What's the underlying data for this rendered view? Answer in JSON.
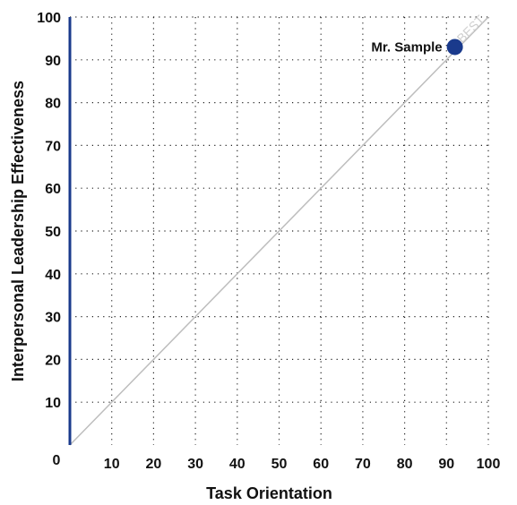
{
  "chart_data": {
    "type": "scatter",
    "xlabel": "Task Orientation",
    "ylabel": "Interpersonal Leadership Effectiveness",
    "xlim": [
      0,
      100
    ],
    "ylim": [
      0,
      100
    ],
    "origin_label": "0",
    "x_ticks": [
      10,
      20,
      30,
      40,
      50,
      60,
      70,
      80,
      90,
      100
    ],
    "y_ticks": [
      10,
      20,
      30,
      40,
      50,
      60,
      70,
      80,
      90,
      100
    ],
    "grid": "dotted",
    "reference_line": {
      "from": [
        0,
        0
      ],
      "to": [
        100,
        100
      ],
      "label": "BEST",
      "color": "#bdbdbd"
    },
    "points": [
      {
        "label": "Mr. Sample",
        "x": 92,
        "y": 93,
        "color": "#1a3a8c"
      }
    ],
    "y_axis_color": "#1a3a8c"
  }
}
